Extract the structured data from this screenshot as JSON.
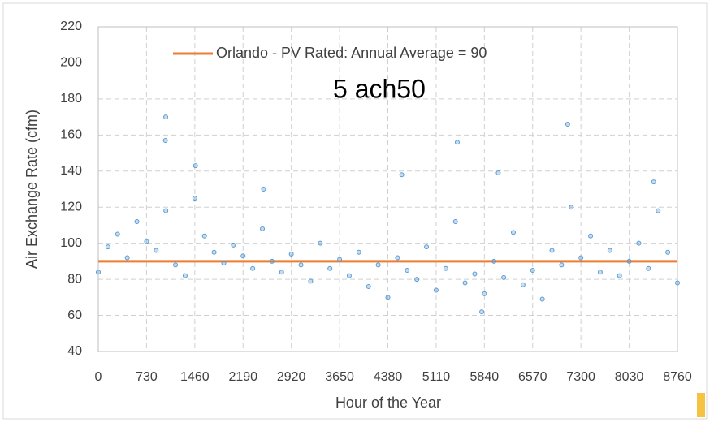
{
  "chart_data": {
    "type": "scatter",
    "xlabel": "Hour of the Year",
    "ylabel": "Air Exchange Rate (cfm)",
    "annotation": "5 ach50",
    "xlim": [
      0,
      8760
    ],
    "ylim": [
      40,
      220
    ],
    "xticks": [
      0,
      730,
      1460,
      2190,
      2920,
      3650,
      4380,
      5110,
      5840,
      6570,
      7300,
      8030,
      8760
    ],
    "yticks": [
      40,
      60,
      80,
      100,
      120,
      140,
      160,
      180,
      200,
      220
    ],
    "grid": true,
    "series": [
      {
        "name": "Orlando - PV Rated:  Annual Average = 90",
        "color": "#ed7d31",
        "type": "line",
        "x": [
          0,
          8760
        ],
        "values": [
          90,
          90
        ]
      },
      {
        "color": "#5b9bd5",
        "type": "scatter",
        "x": [
          0,
          146,
          292,
          438,
          584,
          730,
          876,
          1022,
          1168,
          1314,
          1460,
          1606,
          1752,
          1898,
          2044,
          2190,
          2336,
          2482,
          2628,
          2774,
          2920,
          3066,
          3212,
          3358,
          3504,
          3650,
          3796,
          3942,
          4088,
          4234,
          4380,
          4526,
          4672,
          4818,
          4964,
          5110,
          5256,
          5402,
          5548,
          5694,
          5840,
          5986,
          6132,
          6278,
          6424,
          6570,
          6716,
          6862,
          7008,
          7154,
          7300,
          7446,
          7592,
          7738,
          7884,
          8030,
          8176,
          8322,
          8468,
          8614,
          8760,
          1020,
          1015,
          1470,
          7100,
          5430,
          4590,
          6050,
          8400,
          2500,
          5800
        ],
        "values": [
          84,
          98,
          105,
          92,
          112,
          101,
          96,
          118,
          88,
          82,
          125,
          104,
          95,
          89,
          99,
          93,
          86,
          108,
          90,
          84,
          94,
          88,
          79,
          100,
          86,
          91,
          82,
          95,
          76,
          88,
          70,
          92,
          85,
          80,
          98,
          74,
          86,
          112,
          78,
          83,
          72,
          90,
          81,
          106,
          77,
          85,
          69,
          96,
          88,
          120,
          92,
          104,
          84,
          96,
          82,
          90,
          100,
          86,
          118,
          95,
          78,
          170,
          157,
          143,
          166,
          156,
          138,
          139,
          134,
          130,
          62
        ]
      }
    ]
  }
}
